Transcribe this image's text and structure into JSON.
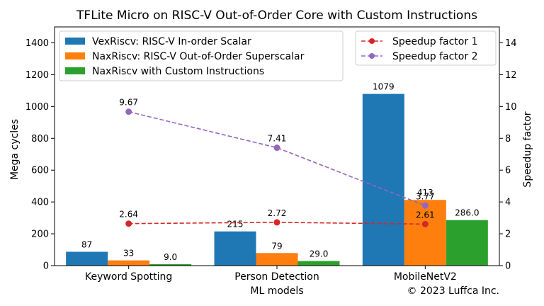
{
  "chart_data": {
    "type": "bar",
    "title": "TFLite Micro on RISC-V Out-of-Order Core with Custom Instructions",
    "xlabel": "ML models",
    "ylabel": "Mega cycles",
    "y2label": "Speedup factor",
    "ylim": [
      0,
      1500
    ],
    "y2lim": [
      0,
      15
    ],
    "yticks": [
      "0",
      "200",
      "400",
      "600",
      "800",
      "1000",
      "1200",
      "1400"
    ],
    "y2ticks": [
      "0",
      "2",
      "4",
      "6",
      "8",
      "10",
      "12",
      "14"
    ],
    "categories": [
      "Keyword Spotting",
      "Person Detection",
      "MobileNetV2"
    ],
    "series": [
      {
        "name": "VexRiscv: RISC-V In-order Scalar",
        "color": "#1f77b4",
        "values": [
          87,
          215,
          1079
        ],
        "labels": [
          "87",
          "215",
          "1079"
        ]
      },
      {
        "name": "NaxRiscv: RISC-V Out-of-Order Superscalar",
        "color": "#ff7f0e",
        "values": [
          33,
          79,
          413
        ],
        "labels": [
          "33",
          "79",
          "413"
        ]
      },
      {
        "name": "NaxRiscv with Custom Instructions",
        "color": "#2ca02c",
        "values": [
          9.0,
          29.0,
          286.0
        ],
        "labels": [
          "9.0",
          "29.0",
          "286.0"
        ]
      }
    ],
    "line_series": [
      {
        "name": "Speedup factor 1",
        "color": "#d62728",
        "values": [
          2.64,
          2.72,
          2.61
        ],
        "labels": [
          "2.64",
          "2.72",
          "2.61"
        ]
      },
      {
        "name": "Speedup factor 2",
        "color": "#9467bd",
        "values": [
          9.67,
          7.41,
          3.77
        ],
        "labels": [
          "9.67",
          "7.41",
          "3.77"
        ]
      }
    ],
    "legend_left": "top-left",
    "legend_right": "top-right",
    "grid": false,
    "credit": "© 2023 Luffca Inc."
  }
}
